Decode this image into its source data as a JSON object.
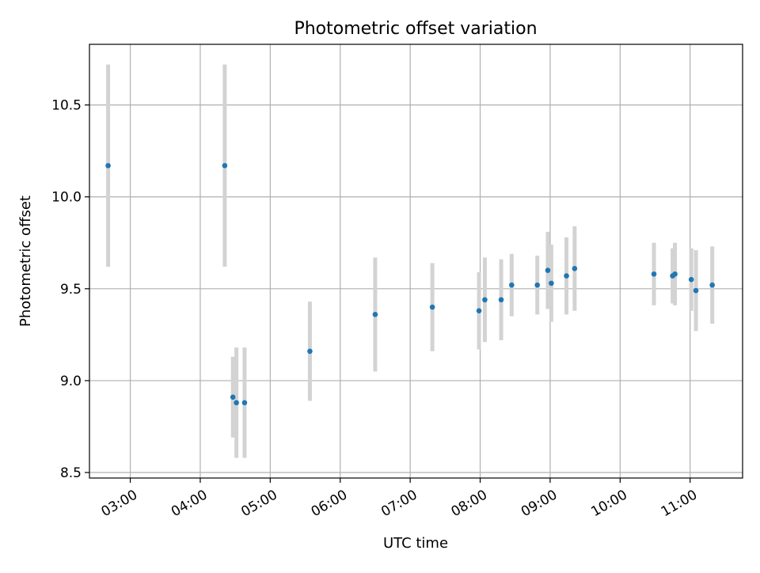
{
  "chart_data": {
    "type": "scatter",
    "title": "Photometric offset variation",
    "xlabel": "UTC time",
    "ylabel": "Photometric offset",
    "x_ticks": [
      "03:00",
      "04:00",
      "05:00",
      "06:00",
      "07:00",
      "08:00",
      "09:00",
      "10:00",
      "11:00"
    ],
    "y_ticks": [
      "8.5",
      "9.0",
      "9.5",
      "10.0",
      "10.5"
    ],
    "xlim": [
      "02:25",
      "11:45"
    ],
    "ylim": [
      8.47,
      10.83
    ],
    "grid": true,
    "legend": "none",
    "colors": {
      "points": "#1f77b4",
      "errorbars": "#d3d3d3",
      "grid": "#b0b0b0"
    },
    "points": [
      {
        "t": "02:41",
        "y": 10.17,
        "err": 0.55
      },
      {
        "t": "04:21",
        "y": 10.17,
        "err": 0.55
      },
      {
        "t": "04:28",
        "y": 8.91,
        "err": 0.22
      },
      {
        "t": "04:31",
        "y": 8.88,
        "err": 0.3
      },
      {
        "t": "04:38",
        "y": 8.88,
        "err": 0.3
      },
      {
        "t": "05:34",
        "y": 9.16,
        "err": 0.27
      },
      {
        "t": "06:30",
        "y": 9.36,
        "err": 0.31
      },
      {
        "t": "07:19",
        "y": 9.4,
        "err": 0.24
      },
      {
        "t": "07:59",
        "y": 9.38,
        "err": 0.21
      },
      {
        "t": "08:04",
        "y": 9.44,
        "err": 0.23
      },
      {
        "t": "08:18",
        "y": 9.44,
        "err": 0.22
      },
      {
        "t": "08:27",
        "y": 9.52,
        "err": 0.17
      },
      {
        "t": "08:49",
        "y": 9.52,
        "err": 0.16
      },
      {
        "t": "08:58",
        "y": 9.6,
        "err": 0.21
      },
      {
        "t": "09:01",
        "y": 9.53,
        "err": 0.21
      },
      {
        "t": "09:14",
        "y": 9.57,
        "err": 0.21
      },
      {
        "t": "09:21",
        "y": 9.61,
        "err": 0.23
      },
      {
        "t": "10:29",
        "y": 9.58,
        "err": 0.17
      },
      {
        "t": "10:45",
        "y": 9.57,
        "err": 0.15
      },
      {
        "t": "10:47",
        "y": 9.58,
        "err": 0.17
      },
      {
        "t": "11:01",
        "y": 9.55,
        "err": 0.17
      },
      {
        "t": "11:05",
        "y": 9.49,
        "err": 0.22
      },
      {
        "t": "11:19",
        "y": 9.52,
        "err": 0.21
      }
    ]
  }
}
